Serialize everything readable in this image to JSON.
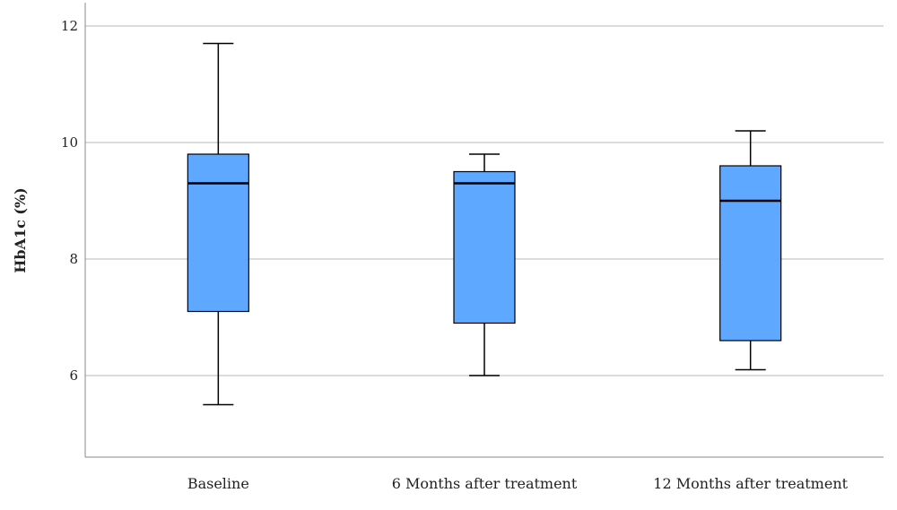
{
  "chart_data": {
    "type": "box",
    "ylabel": "HbA1c (%)",
    "xlabel": "",
    "ylim": [
      4.6,
      12.4
    ],
    "yticks": [
      6,
      8,
      10,
      12
    ],
    "grid": "horizontal",
    "box_color": "#5fa8ff",
    "categories": [
      "Baseline",
      "6 Months after treatment",
      "12 Months after treatment"
    ],
    "boxes": [
      {
        "category": "Baseline",
        "min": 5.5,
        "q1": 7.1,
        "median": 9.3,
        "q3": 9.8,
        "max": 11.7
      },
      {
        "category": "6 Months after treatment",
        "min": 6.0,
        "q1": 6.9,
        "median": 9.3,
        "q3": 9.5,
        "max": 9.8
      },
      {
        "category": "12 Months after treatment",
        "min": 6.1,
        "q1": 6.6,
        "median": 9.0,
        "q3": 9.6,
        "max": 10.2
      }
    ]
  }
}
